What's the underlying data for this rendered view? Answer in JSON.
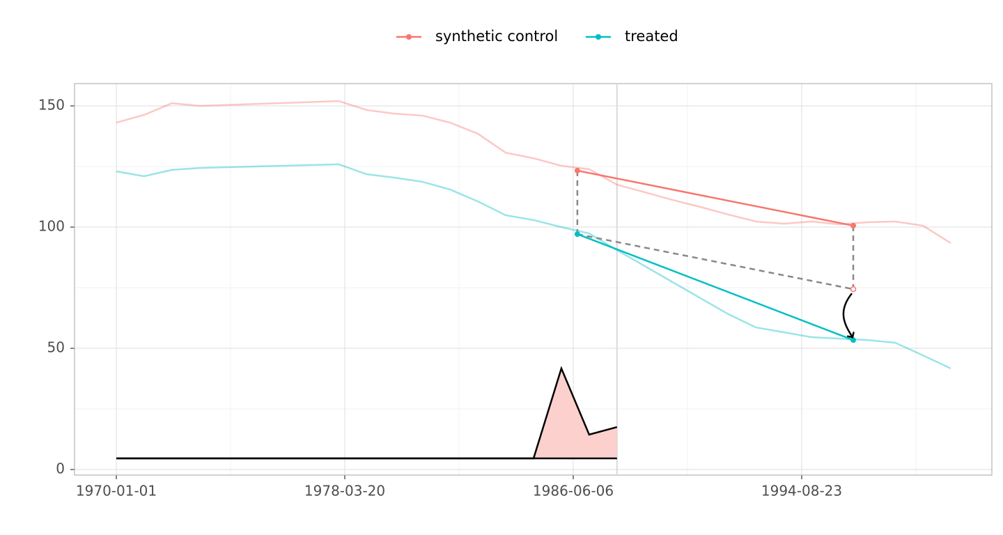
{
  "chart_data": {
    "type": "line",
    "x": [
      "1970-01-01",
      "1971-01-01",
      "1972-01-01",
      "1973-01-01",
      "1974-01-01",
      "1975-01-01",
      "1976-01-01",
      "1977-01-01",
      "1978-01-01",
      "1979-01-01",
      "1980-01-01",
      "1981-01-01",
      "1982-01-01",
      "1983-01-01",
      "1984-01-01",
      "1985-01-01",
      "1986-01-01",
      "1987-01-01",
      "1988-01-01",
      "1989-01-01",
      "1990-01-01",
      "1991-01-01",
      "1992-01-01",
      "1993-01-01",
      "1994-01-01",
      "1995-01-01",
      "1996-01-01",
      "1997-01-01",
      "1998-01-01",
      "1999-01-01",
      "2000-01-01"
    ],
    "series": [
      {
        "name": "synthetic control",
        "color": "#F8766D",
        "values": [
          143.1,
          146.3,
          151.1,
          150.0,
          150.4,
          150.8,
          151.2,
          151.6,
          152.0,
          148.3,
          146.8,
          146.0,
          143.1,
          138.5,
          130.7,
          128.4,
          125.3,
          123.9,
          117.5,
          114.4,
          111.2,
          108.3,
          105.2,
          102.3,
          101.4,
          102.3,
          101.1,
          102.0,
          102.3,
          100.6,
          93.4
        ],
        "segment": {
          "x": [
            "1986-07-30",
            "1996-06-30"
          ],
          "values": [
            123.3,
            100.6
          ]
        }
      },
      {
        "name": "treated",
        "color": "#00BFC4",
        "values": [
          123.0,
          121.0,
          123.6,
          124.4,
          124.7,
          125.0,
          125.3,
          125.6,
          125.9,
          121.8,
          120.4,
          118.7,
          115.5,
          110.6,
          104.9,
          102.9,
          100.0,
          97.4,
          90.5,
          83.9,
          77.3,
          70.7,
          64.1,
          58.6,
          56.6,
          54.6,
          54.0,
          53.4,
          52.3,
          47.1,
          41.7
        ],
        "segment": {
          "x": [
            "1986-07-30",
            "1996-06-30"
          ],
          "values": [
            97.1,
            53.4
          ]
        }
      }
    ],
    "counterfactual": {
      "x": "1996-06-30",
      "value": 74.4
    },
    "area": {
      "values": [
        4.6,
        4.6,
        4.6,
        4.6,
        4.6,
        4.6,
        4.6,
        4.6,
        4.6,
        4.6,
        4.6,
        4.6,
        4.6,
        4.6,
        4.6,
        4.6,
        41.7,
        14.4,
        17.5
      ],
      "baseline": 4.6,
      "color": "#FCD0CD"
    },
    "vline": "1988-01-01",
    "xlim": [
      "1968-07-01",
      "2001-06-24"
    ],
    "xticks": [
      "1970-01-01",
      "1978-03-20",
      "1986-06-06",
      "1994-08-23"
    ],
    "ylim": [
      -2.3,
      159.2
    ],
    "yticks": [
      0,
      50,
      100,
      150
    ],
    "grid": true
  }
}
